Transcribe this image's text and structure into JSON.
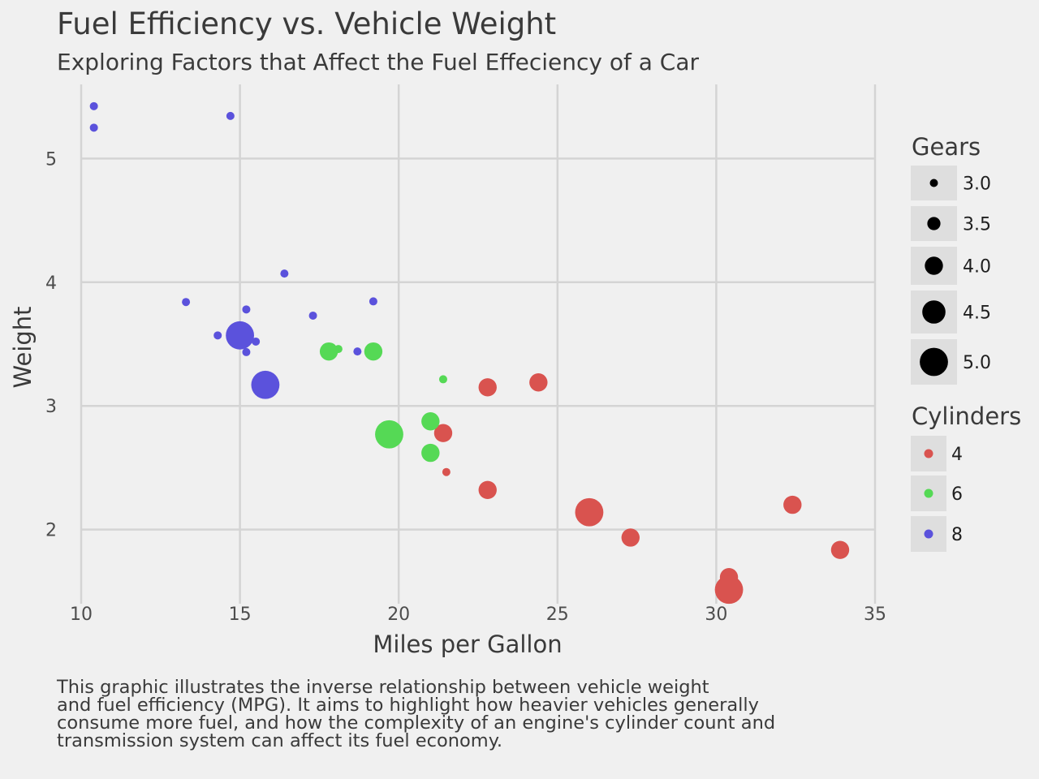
{
  "chart_data": {
    "type": "scatter",
    "title": "Fuel Efficiency vs. Vehicle Weight",
    "subtitle": "Exploring Factors that Affect the Fuel Effeciency of a Car",
    "xlabel": "Miles per Gallon",
    "ylabel": "Weight",
    "xlim": [
      10,
      35
    ],
    "ylim": [
      1.4,
      5.6
    ],
    "xticks": [
      "10",
      "15",
      "20",
      "25",
      "30",
      "35"
    ],
    "yticks": [
      "2",
      "3",
      "4",
      "5"
    ],
    "xtick_values": [
      10,
      15,
      20,
      25,
      30,
      35
    ],
    "ytick_values": [
      2,
      3,
      4,
      5
    ],
    "grid": true,
    "legend_position": "right",
    "size_legend": {
      "title": "Gears",
      "entries": [
        {
          "label": "3.0",
          "value": 3.0
        },
        {
          "label": "3.5",
          "value": 3.5
        },
        {
          "label": "4.0",
          "value": 4.0
        },
        {
          "label": "4.5",
          "value": 4.5
        },
        {
          "label": "5.0",
          "value": 5.0
        }
      ]
    },
    "color_legend": {
      "title": "Cylinders",
      "entries": [
        {
          "label": "4",
          "color": "#d9534f"
        },
        {
          "label": "6",
          "color": "#55d955"
        },
        {
          "label": "8",
          "color": "#5b52dc"
        }
      ]
    },
    "caption": [
      "This graphic illustrates the inverse relationship between vehicle weight",
      "and fuel efficiency (MPG). It aims to highlight how heavier vehicles generally",
      "consume more fuel, and how the complexity of an engine's cylinder count and",
      "transmission system can affect its fuel economy."
    ],
    "series": [
      {
        "name": "4",
        "points": [
          {
            "x": 22.8,
            "y": 2.32,
            "gears": 4
          },
          {
            "x": 24.4,
            "y": 3.19,
            "gears": 4
          },
          {
            "x": 22.8,
            "y": 3.15,
            "gears": 4
          },
          {
            "x": 32.4,
            "y": 2.2,
            "gears": 4
          },
          {
            "x": 30.4,
            "y": 1.615,
            "gears": 4
          },
          {
            "x": 33.9,
            "y": 1.835,
            "gears": 4
          },
          {
            "x": 21.5,
            "y": 2.465,
            "gears": 3
          },
          {
            "x": 27.3,
            "y": 1.935,
            "gears": 4
          },
          {
            "x": 26.0,
            "y": 2.14,
            "gears": 5
          },
          {
            "x": 30.4,
            "y": 1.513,
            "gears": 5
          },
          {
            "x": 21.4,
            "y": 2.78,
            "gears": 4
          }
        ]
      },
      {
        "name": "6",
        "points": [
          {
            "x": 21.0,
            "y": 2.62,
            "gears": 4
          },
          {
            "x": 21.0,
            "y": 2.875,
            "gears": 4
          },
          {
            "x": 21.4,
            "y": 3.215,
            "gears": 3
          },
          {
            "x": 18.1,
            "y": 3.46,
            "gears": 3
          },
          {
            "x": 19.2,
            "y": 3.44,
            "gears": 4
          },
          {
            "x": 17.8,
            "y": 3.44,
            "gears": 4
          },
          {
            "x": 19.7,
            "y": 2.77,
            "gears": 5
          }
        ]
      },
      {
        "name": "8",
        "points": [
          {
            "x": 18.7,
            "y": 3.44,
            "gears": 3
          },
          {
            "x": 14.3,
            "y": 3.57,
            "gears": 3
          },
          {
            "x": 16.4,
            "y": 4.07,
            "gears": 3
          },
          {
            "x": 17.3,
            "y": 3.73,
            "gears": 3
          },
          {
            "x": 15.2,
            "y": 3.78,
            "gears": 3
          },
          {
            "x": 10.4,
            "y": 5.25,
            "gears": 3
          },
          {
            "x": 10.4,
            "y": 5.424,
            "gears": 3
          },
          {
            "x": 14.7,
            "y": 5.345,
            "gears": 3
          },
          {
            "x": 15.5,
            "y": 3.52,
            "gears": 3
          },
          {
            "x": 15.2,
            "y": 3.435,
            "gears": 3
          },
          {
            "x": 13.3,
            "y": 3.84,
            "gears": 3
          },
          {
            "x": 19.2,
            "y": 3.845,
            "gears": 3
          },
          {
            "x": 15.8,
            "y": 3.17,
            "gears": 5
          },
          {
            "x": 15.0,
            "y": 3.57,
            "gears": 5
          }
        ]
      }
    ]
  }
}
